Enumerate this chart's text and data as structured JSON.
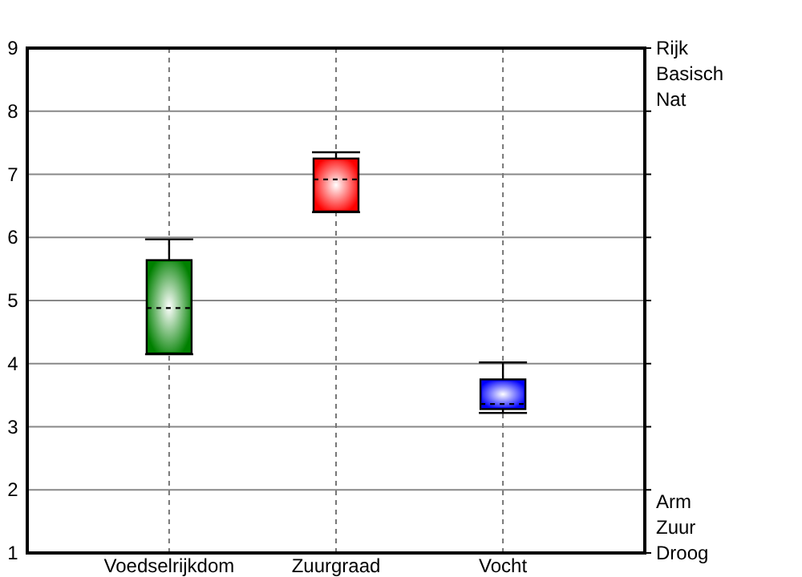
{
  "chart_data": {
    "type": "box",
    "categories": [
      "Voedselrijkdom",
      "Zuurgraad",
      "Vocht"
    ],
    "boxes": [
      {
        "low": 4.15,
        "q1": 4.16,
        "median": 4.88,
        "q3": 5.64,
        "high": 5.97
      },
      {
        "low": 6.4,
        "q1": 6.41,
        "median": 6.92,
        "q3": 7.25,
        "high": 7.35
      },
      {
        "low": 3.22,
        "q1": 3.28,
        "median": 3.36,
        "q3": 3.75,
        "high": 4.02
      }
    ],
    "colors": [
      "#008000",
      "#ff0000",
      "#0000ff"
    ],
    "ylim": [
      1,
      9
    ],
    "yticks": [
      1,
      2,
      3,
      4,
      5,
      6,
      7,
      8,
      9
    ],
    "grid": true,
    "annotations": [
      "Rijk",
      "Basisch",
      "Nat",
      "Arm",
      "Zuur",
      "Droog"
    ]
  }
}
